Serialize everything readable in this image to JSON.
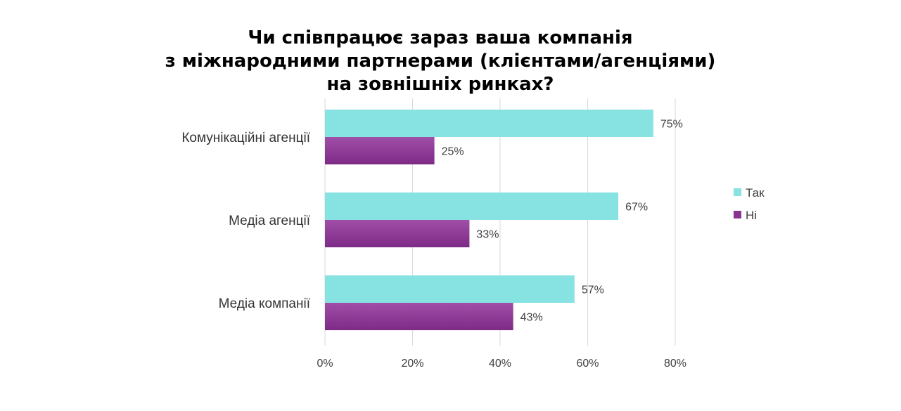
{
  "chart_data": {
    "type": "bar",
    "orientation": "horizontal",
    "title_lines": [
      "Чи співпрацює зараз ваша компанія",
      "з міжнародними партнерами (клієнтами/агенціями)",
      "на зовнішніх ринках?"
    ],
    "categories": [
      "Комунікаційні агенції",
      "Медіа агенції",
      "Медіа компанії"
    ],
    "series": [
      {
        "name": "Так",
        "values": [
          75,
          67,
          57
        ],
        "labels": [
          "75%",
          "67%",
          "57%"
        ],
        "color": "#86E3E1"
      },
      {
        "name": "Ні",
        "values": [
          25,
          33,
          43
        ],
        "labels": [
          "25%",
          "33%",
          "43%"
        ],
        "color": "#8A3492"
      }
    ],
    "xlim": [
      0,
      80
    ],
    "x_ticks": [
      0,
      20,
      40,
      60,
      80
    ],
    "x_tick_labels": [
      "0%",
      "20%",
      "40%",
      "60%",
      "80%"
    ],
    "grid": true,
    "legend_position": "right"
  }
}
